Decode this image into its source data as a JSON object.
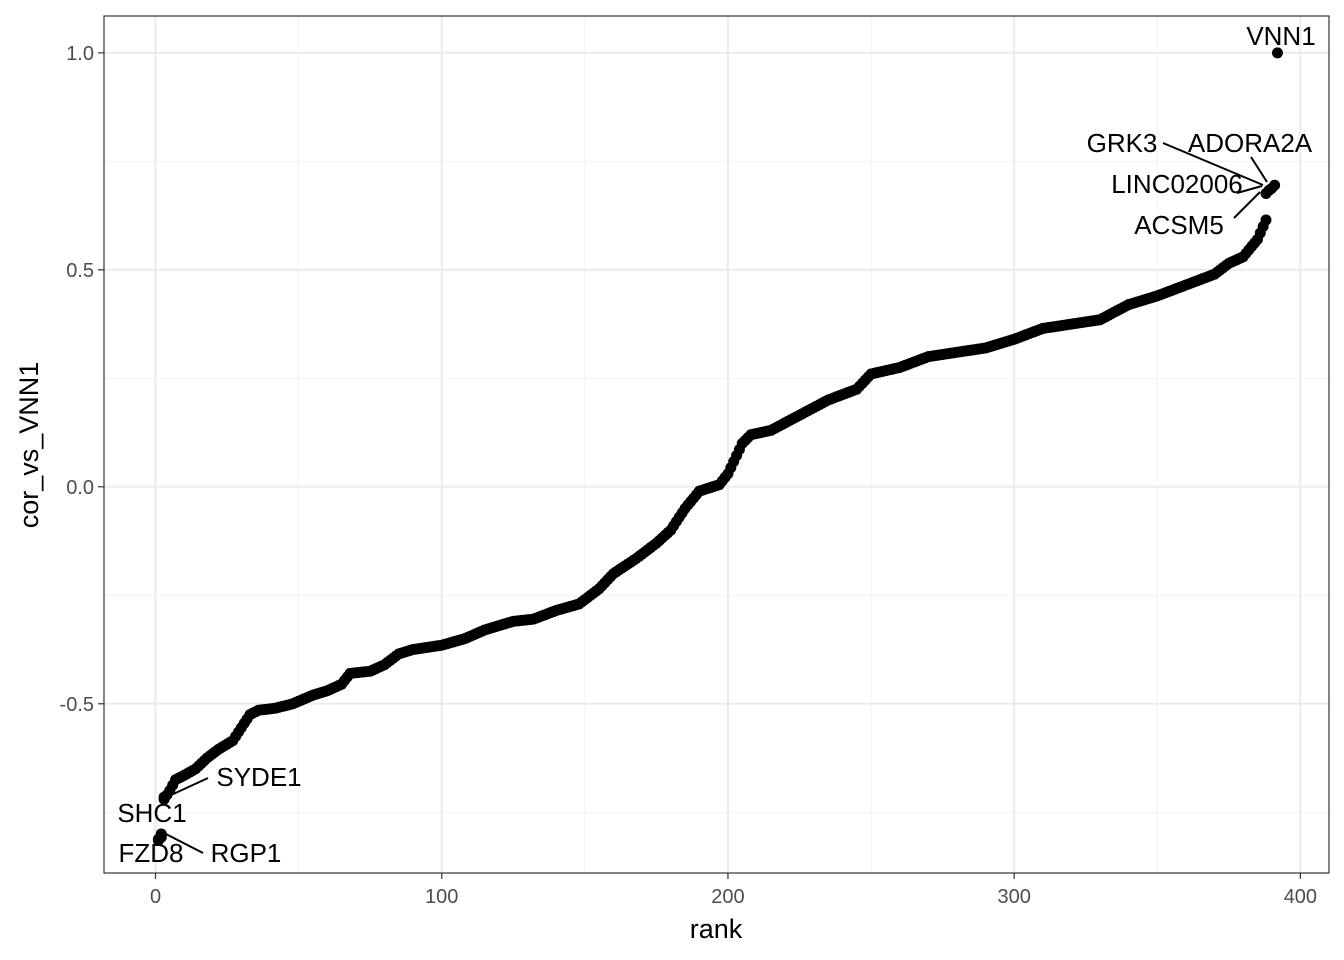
{
  "chart_data": {
    "type": "scatter",
    "xlabel": "rank",
    "ylabel": "cor_vs_VNN1",
    "xlim": [
      -18,
      410
    ],
    "ylim": [
      -0.89,
      1.085
    ],
    "x_ticks": [
      0,
      100,
      200,
      300,
      400
    ],
    "x_tick_labels": [
      "0",
      "100",
      "200",
      "300",
      "400"
    ],
    "y_ticks": [
      -0.5,
      0.0,
      0.5,
      1.0
    ],
    "y_tick_labels": [
      "-0.5",
      "0.0",
      "0.5",
      "1.0"
    ],
    "grid": true,
    "point_color": "#000000",
    "profile": [
      [
        1,
        -0.815
      ],
      [
        2,
        -0.805
      ],
      [
        3,
        -0.72
      ],
      [
        5,
        -0.7
      ],
      [
        7,
        -0.675
      ],
      [
        10,
        -0.665
      ],
      [
        14,
        -0.65
      ],
      [
        18,
        -0.625
      ],
      [
        22,
        -0.605
      ],
      [
        27,
        -0.585
      ],
      [
        30,
        -0.555
      ],
      [
        33,
        -0.525
      ],
      [
        36,
        -0.515
      ],
      [
        42,
        -0.51
      ],
      [
        48,
        -0.5
      ],
      [
        55,
        -0.48
      ],
      [
        60,
        -0.47
      ],
      [
        65,
        -0.455
      ],
      [
        68,
        -0.43
      ],
      [
        75,
        -0.425
      ],
      [
        80,
        -0.41
      ],
      [
        85,
        -0.385
      ],
      [
        90,
        -0.375
      ],
      [
        100,
        -0.365
      ],
      [
        108,
        -0.35
      ],
      [
        115,
        -0.33
      ],
      [
        125,
        -0.31
      ],
      [
        132,
        -0.305
      ],
      [
        140,
        -0.285
      ],
      [
        148,
        -0.27
      ],
      [
        155,
        -0.235
      ],
      [
        160,
        -0.2
      ],
      [
        168,
        -0.165
      ],
      [
        175,
        -0.13
      ],
      [
        180,
        -0.1
      ],
      [
        185,
        -0.05
      ],
      [
        190,
        -0.01
      ],
      [
        197,
        0.005
      ],
      [
        200,
        0.03
      ],
      [
        205,
        0.1
      ],
      [
        208,
        0.12
      ],
      [
        215,
        0.13
      ],
      [
        225,
        0.165
      ],
      [
        235,
        0.2
      ],
      [
        245,
        0.225
      ],
      [
        250,
        0.26
      ],
      [
        260,
        0.275
      ],
      [
        270,
        0.3
      ],
      [
        280,
        0.31
      ],
      [
        290,
        0.32
      ],
      [
        300,
        0.34
      ],
      [
        310,
        0.365
      ],
      [
        320,
        0.375
      ],
      [
        330,
        0.385
      ],
      [
        340,
        0.42
      ],
      [
        350,
        0.44
      ],
      [
        360,
        0.465
      ],
      [
        370,
        0.49
      ],
      [
        375,
        0.515
      ],
      [
        380,
        0.53
      ],
      [
        385,
        0.57
      ],
      [
        388,
        0.615
      ]
    ],
    "highlighted": [
      {
        "gene": "VNN1",
        "x": 392,
        "y": 1.0
      },
      {
        "gene": "ADORA2A",
        "x": 391,
        "y": 0.695
      },
      {
        "gene": "GRK3",
        "x": 390,
        "y": 0.688
      },
      {
        "gene": "LINC02006",
        "x": 389,
        "y": 0.683
      },
      {
        "gene": "ACSM5",
        "x": 388,
        "y": 0.676
      },
      {
        "gene": "SYDE1",
        "x": 3,
        "y": -0.715
      },
      {
        "gene": "SHC1",
        "x": 2,
        "y": -0.8
      },
      {
        "gene": "FZD8",
        "x": 1,
        "y": -0.812
      },
      {
        "gene": "RGP1",
        "x": 2,
        "y": -0.808
      }
    ]
  }
}
